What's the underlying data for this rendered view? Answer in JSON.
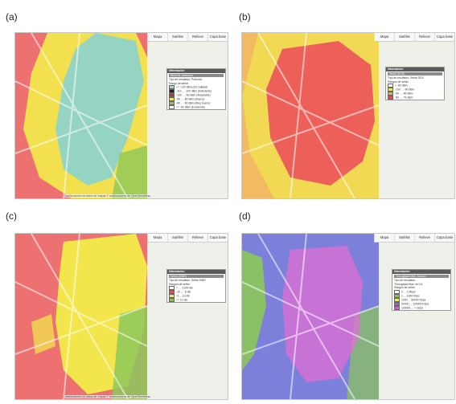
{
  "labels": [
    "(a)",
    "(b)",
    "(c)",
    "(d)"
  ],
  "toolbar": [
    "Mapa",
    "Satélite",
    "Relieve",
    "Capa base"
  ],
  "legend_a": {
    "head": "Informacion",
    "sub": "Nivel de cobertura",
    "rows": [
      "Tipo de resultado: Potencia",
      "Rango de señal"
    ],
    "items": [
      {
        "color": "#9ad7d0",
        "text": ">= -120 dBm (2G calidad)"
      },
      {
        "color": "#222222",
        "text": "-110 ... -100 dBm (Deficiente)"
      },
      {
        "color": "#d62b2b",
        "text": "-100 ... -90 dBm (Aceptable)"
      },
      {
        "color": "#f2ec4a",
        "text": "-90 ... -80 dBm (Bueno)"
      },
      {
        "color": "#8bc34a",
        "text": "-80 ... -60 dBm (Muy bueno)"
      },
      {
        "color": "#ffffff",
        "text": ">= -60 dBm (Excelente)"
      }
    ]
  },
  "legend_b": {
    "head": "Informacion",
    "sub": "Señal (DDS)",
    "rows": [
      "Tipo de resultado: Señal DDS",
      "Rangos de señal"
    ],
    "items": [
      {
        "color": "#ffffff",
        "text": "> -80 dBm"
      },
      {
        "color": "#f2ec4a",
        "text": "-100 ... -90 dBm"
      },
      {
        "color": "#f0a84a",
        "text": "-90 ... -80 dBm"
      },
      {
        "color": "#e85050",
        "text": "-80 ... -70 dBm"
      }
    ]
  },
  "legend_c": {
    "head": "Informacion",
    "sub": "Señal (SINR)",
    "rows": [
      "Tipo de resultado: Señal SINR",
      "Rangos de señal"
    ],
    "items": [
      {
        "color": "#ffffff",
        "text": "< ... -1000 dB"
      },
      {
        "color": "#e85050",
        "text": "-10 ... -5 dB"
      },
      {
        "color": "#f2ec4a",
        "text": "-5 ... 10 dB"
      },
      {
        "color": "#8bc34a",
        "text": ">= 10 dB"
      }
    ]
  },
  "legend_d": {
    "head": "Informacion",
    "sub": "Throughput Max. Teorico",
    "rows": [
      "Tipo de resultado:",
      "Throughput Max. en DL",
      "Rangos de señal"
    ],
    "items": [
      {
        "color": "#ffffff",
        "text": "0 ... 1 Mbps"
      },
      {
        "color": "#8bc34a",
        "text": "1 ... 1000 Kbps"
      },
      {
        "color": "#f2ec4a",
        "text": "1000 ... 50000 Kbps"
      },
      {
        "color": "#7b6fd6",
        "text": "50000 ... 100000 Kbps"
      },
      {
        "color": "#e05bd0",
        "text": "100000 ... > Gbps"
      }
    ]
  },
  "copyright": "Contribuciones de datos de mapas © colaboradores de OpenStreetMap",
  "colors": {
    "red": "#ec5a5a",
    "yellow": "#f2ec4a",
    "cyan": "#8fd3c9",
    "orange": "#f2b24a",
    "green": "#8cc85a",
    "blue": "#6f73d8",
    "magenta": "#e06fd3",
    "map": "#eef1ea"
  }
}
